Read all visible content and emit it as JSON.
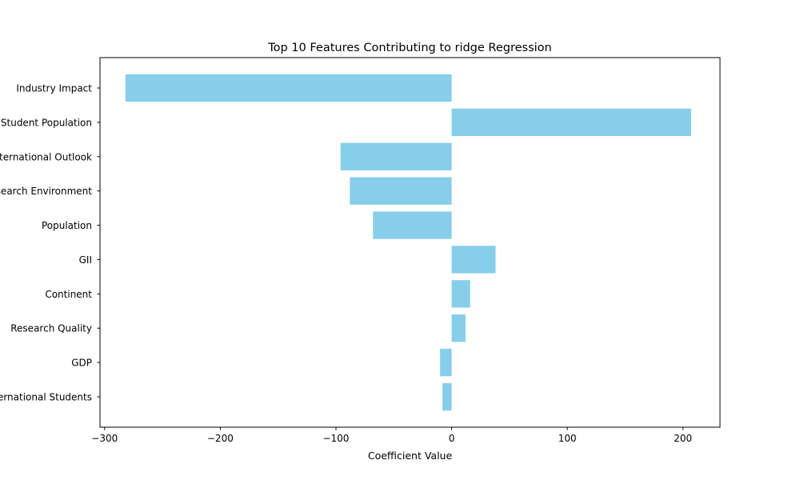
{
  "chart_data": {
    "type": "bar",
    "orientation": "horizontal",
    "title": "Top 10 Features Contributing to ridge Regression",
    "xlabel": "Coefficient Value",
    "ylabel": "",
    "categories": [
      "Industry Impact",
      "Student Population",
      "International Outlook",
      "Research Environment",
      "Population",
      "GII",
      "Continent",
      "Research Quality",
      "GDP",
      "International Students"
    ],
    "values": [
      -282,
      207,
      -96,
      -88,
      -68,
      38,
      16,
      12,
      -10,
      -8
    ],
    "xlim": [
      -304,
      232
    ],
    "xticks": [
      -300,
      -200,
      -100,
      0,
      100,
      200
    ],
    "xtick_labels": [
      "−300",
      "−200",
      "−100",
      "0",
      "100",
      "200"
    ],
    "bar_color": "#87ceeb",
    "grid": false,
    "legend": "none"
  }
}
